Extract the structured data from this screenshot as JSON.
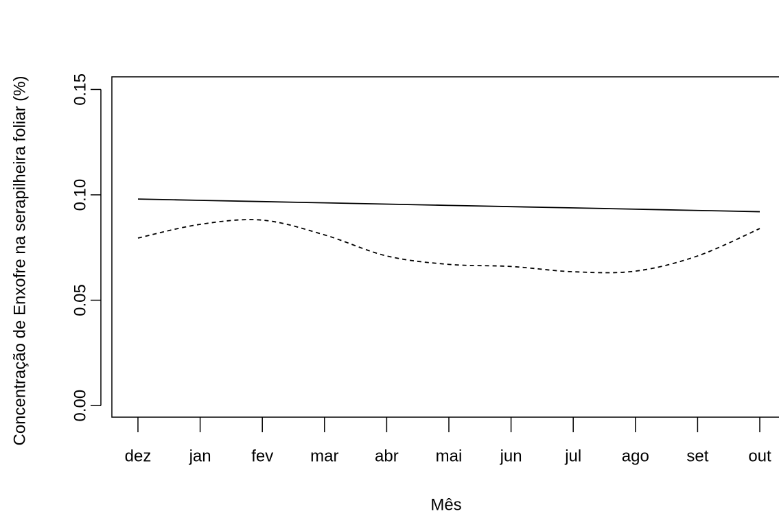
{
  "chart_data": {
    "type": "line",
    "x_label": "Mês",
    "y_label": "Concentração de Enxofre na serapilheira foliar (%)",
    "categories": [
      "dez",
      "jan",
      "fev",
      "mar",
      "abr",
      "mai",
      "jun",
      "jul",
      "ago",
      "set",
      "out"
    ],
    "series": [
      {
        "color": "#000000",
        "dash": "solid",
        "values": [
          0.098,
          0.0974,
          0.0968,
          0.0962,
          0.0956,
          0.095,
          0.0944,
          0.0938,
          0.0932,
          0.0926,
          0.092
        ]
      },
      {
        "color": "#000000",
        "dash": "dashed",
        "values": [
          0.0795,
          0.086,
          0.088,
          0.081,
          0.071,
          0.067,
          0.066,
          0.0635,
          0.0638,
          0.071,
          0.084
        ]
      }
    ],
    "ylim": [
      -0.0055,
      0.156
    ],
    "yticks": [
      {
        "value": 0,
        "label": "0.00"
      },
      {
        "value": 0.05,
        "label": "0.05"
      },
      {
        "value": 0.1,
        "label": "0.10"
      },
      {
        "value": 0.15,
        "label": "0.15"
      }
    ],
    "grid": false
  }
}
